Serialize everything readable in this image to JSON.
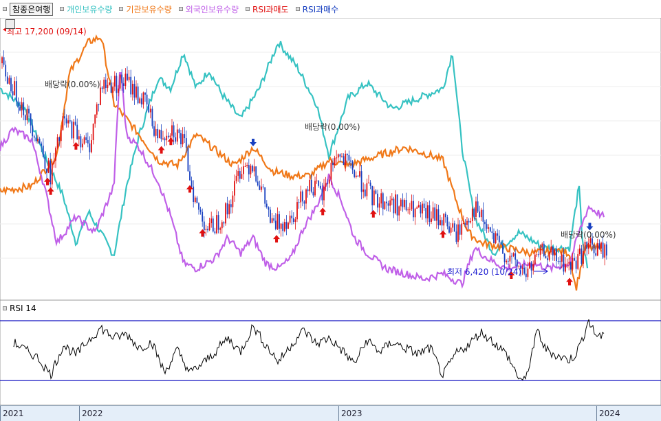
{
  "legend": {
    "button_label": "참종은여행",
    "items": [
      {
        "label": "개인보유수량",
        "color": "#36c2c2"
      },
      {
        "label": "기관보유수량",
        "color": "#f07818"
      },
      {
        "label": "외국인보유수량",
        "color": "#c060e8"
      },
      {
        "label": "RSI과매도",
        "color": "#e01010"
      },
      {
        "label": "RSI과매수",
        "color": "#1840c0"
      }
    ]
  },
  "annotations": {
    "high": "최고 17,200 (09/14)",
    "low": "최저 6,420 (10/24)",
    "dividend": "배당락(0.00%)"
  },
  "rsi_panel": {
    "title": "RSI 14"
  },
  "x_ticks": [
    "2021",
    "2022",
    "2023",
    "2024"
  ],
  "colors": {
    "up": "#e01010",
    "down": "#1840c0",
    "rsi_line": "#000000",
    "rsi_band": "#1010c0",
    "rsi_fill": "#0000ee"
  },
  "chart_data": [
    {
      "type": "candlestick",
      "title": "",
      "x_range": [
        "2021",
        "2024"
      ],
      "price_high": 17200,
      "price_high_date": "09/14",
      "price_low": 6420,
      "price_low_date": "10/24",
      "price_keypoints": [
        [
          0,
          15800
        ],
        [
          0.03,
          14200
        ],
        [
          0.06,
          12500
        ],
        [
          0.08,
          10800
        ],
        [
          0.1,
          13200
        ],
        [
          0.12,
          12800
        ],
        [
          0.14,
          12000
        ],
        [
          0.16,
          14800
        ],
        [
          0.2,
          15000
        ],
        [
          0.23,
          14000
        ],
        [
          0.25,
          12500
        ],
        [
          0.27,
          13000
        ],
        [
          0.29,
          12300
        ],
        [
          0.31,
          9500
        ],
        [
          0.33,
          8400
        ],
        [
          0.36,
          9300
        ],
        [
          0.38,
          11200
        ],
        [
          0.4,
          11400
        ],
        [
          0.43,
          8600
        ],
        [
          0.46,
          9000
        ],
        [
          0.49,
          10500
        ],
        [
          0.51,
          9900
        ],
        [
          0.53,
          11800
        ],
        [
          0.56,
          11000
        ],
        [
          0.59,
          9800
        ],
        [
          0.62,
          9600
        ],
        [
          0.66,
          9200
        ],
        [
          0.7,
          8900
        ],
        [
          0.72,
          8200
        ],
        [
          0.75,
          9400
        ],
        [
          0.78,
          8000
        ],
        [
          0.8,
          7300
        ],
        [
          0.83,
          6500
        ],
        [
          0.86,
          7500
        ],
        [
          0.88,
          7100
        ],
        [
          0.9,
          6800
        ],
        [
          0.93,
          7700
        ],
        [
          0.96,
          7400
        ]
      ],
      "series": [
        {
          "name": "개인보유수량",
          "keypoints": [
            [
              0,
              0.78
            ],
            [
              0.04,
              0.7
            ],
            [
              0.07,
              0.52
            ],
            [
              0.1,
              0.36
            ],
            [
              0.12,
              0.18
            ],
            [
              0.14,
              0.3
            ],
            [
              0.18,
              0.13
            ],
            [
              0.2,
              0.4
            ],
            [
              0.22,
              0.6
            ],
            [
              0.25,
              0.82
            ],
            [
              0.27,
              0.78
            ],
            [
              0.29,
              0.92
            ],
            [
              0.31,
              0.78
            ],
            [
              0.33,
              0.85
            ],
            [
              0.35,
              0.76
            ],
            [
              0.38,
              0.66
            ],
            [
              0.41,
              0.78
            ],
            [
              0.44,
              0.96
            ],
            [
              0.47,
              0.86
            ],
            [
              0.5,
              0.72
            ],
            [
              0.52,
              0.52
            ],
            [
              0.55,
              0.74
            ],
            [
              0.58,
              0.8
            ],
            [
              0.62,
              0.7
            ],
            [
              0.66,
              0.74
            ],
            [
              0.7,
              0.78
            ],
            [
              0.715,
              0.92
            ],
            [
              0.73,
              0.55
            ],
            [
              0.75,
              0.28
            ],
            [
              0.78,
              0.14
            ],
            [
              0.82,
              0.22
            ],
            [
              0.86,
              0.16
            ],
            [
              0.9,
              0.16
            ],
            [
              0.915,
              0.4
            ],
            [
              0.92,
              0.2
            ],
            [
              0.93,
              0.05
            ]
          ]
        },
        {
          "name": "기관보유수량",
          "keypoints": [
            [
              0,
              0.38
            ],
            [
              0.05,
              0.4
            ],
            [
              0.09,
              0.52
            ],
            [
              0.11,
              0.84
            ],
            [
              0.14,
              0.96
            ],
            [
              0.16,
              0.98
            ],
            [
              0.18,
              0.72
            ],
            [
              0.2,
              0.66
            ],
            [
              0.22,
              0.6
            ],
            [
              0.25,
              0.5
            ],
            [
              0.28,
              0.48
            ],
            [
              0.31,
              0.6
            ],
            [
              0.34,
              0.54
            ],
            [
              0.37,
              0.48
            ],
            [
              0.4,
              0.55
            ],
            [
              0.43,
              0.46
            ],
            [
              0.46,
              0.44
            ],
            [
              0.49,
              0.44
            ],
            [
              0.52,
              0.5
            ],
            [
              0.55,
              0.48
            ],
            [
              0.6,
              0.52
            ],
            [
              0.64,
              0.55
            ],
            [
              0.68,
              0.52
            ],
            [
              0.7,
              0.5
            ],
            [
              0.72,
              0.35
            ],
            [
              0.74,
              0.22
            ],
            [
              0.76,
              0.18
            ],
            [
              0.8,
              0.16
            ],
            [
              0.84,
              0.14
            ],
            [
              0.88,
              0.15
            ],
            [
              0.9,
              0.14
            ],
            [
              0.91,
              0.0
            ],
            [
              0.925,
              0.16
            ],
            [
              0.95,
              0.16
            ]
          ]
        },
        {
          "name": "외국인보유수량",
          "keypoints": [
            [
              0,
              0.55
            ],
            [
              0.02,
              0.62
            ],
            [
              0.05,
              0.58
            ],
            [
              0.07,
              0.4
            ],
            [
              0.09,
              0.18
            ],
            [
              0.12,
              0.28
            ],
            [
              0.15,
              0.22
            ],
            [
              0.18,
              0.4
            ],
            [
              0.19,
              0.88
            ],
            [
              0.2,
              0.6
            ],
            [
              0.22,
              0.55
            ],
            [
              0.25,
              0.42
            ],
            [
              0.27,
              0.28
            ],
            [
              0.29,
              0.1
            ],
            [
              0.31,
              0.08
            ],
            [
              0.34,
              0.12
            ],
            [
              0.36,
              0.2
            ],
            [
              0.38,
              0.14
            ],
            [
              0.4,
              0.2
            ],
            [
              0.42,
              0.1
            ],
            [
              0.44,
              0.08
            ],
            [
              0.46,
              0.12
            ],
            [
              0.48,
              0.24
            ],
            [
              0.5,
              0.32
            ],
            [
              0.52,
              0.44
            ],
            [
              0.54,
              0.34
            ],
            [
              0.56,
              0.2
            ],
            [
              0.58,
              0.14
            ],
            [
              0.61,
              0.08
            ],
            [
              0.64,
              0.06
            ],
            [
              0.67,
              0.04
            ],
            [
              0.7,
              0.06
            ],
            [
              0.73,
              0.02
            ],
            [
              0.75,
              0.16
            ],
            [
              0.77,
              0.12
            ],
            [
              0.8,
              0.08
            ],
            [
              0.84,
              0.1
            ],
            [
              0.87,
              0.08
            ],
            [
              0.9,
              0.1
            ],
            [
              0.915,
              0.22
            ],
            [
              0.93,
              0.32
            ],
            [
              0.955,
              0.28
            ]
          ]
        }
      ],
      "signals": {
        "oversold": [
          0.075,
          0.08,
          0.12,
          0.255,
          0.27,
          0.3,
          0.32,
          0.437,
          0.51,
          0.59,
          0.7,
          0.808,
          0.9
        ],
        "overbought": [
          0.4,
          0.932
        ]
      }
    },
    {
      "type": "line",
      "title": "RSI 14",
      "ylim": [
        0,
        100
      ],
      "overbought_level": 70,
      "oversold_level": 30,
      "keypoints": [
        [
          0,
          45
        ],
        [
          0.02,
          58
        ],
        [
          0.04,
          50
        ],
        [
          0.06,
          42
        ],
        [
          0.08,
          25
        ],
        [
          0.1,
          55
        ],
        [
          0.12,
          45
        ],
        [
          0.14,
          60
        ],
        [
          0.16,
          72
        ],
        [
          0.18,
          62
        ],
        [
          0.2,
          66
        ],
        [
          0.22,
          52
        ],
        [
          0.24,
          58
        ],
        [
          0.26,
          27
        ],
        [
          0.28,
          50
        ],
        [
          0.3,
          27
        ],
        [
          0.32,
          36
        ],
        [
          0.34,
          48
        ],
        [
          0.36,
          62
        ],
        [
          0.38,
          48
        ],
        [
          0.4,
          74
        ],
        [
          0.42,
          55
        ],
        [
          0.44,
          38
        ],
        [
          0.46,
          55
        ],
        [
          0.48,
          70
        ],
        [
          0.5,
          56
        ],
        [
          0.52,
          62
        ],
        [
          0.54,
          50
        ],
        [
          0.56,
          36
        ],
        [
          0.58,
          60
        ],
        [
          0.6,
          48
        ],
        [
          0.62,
          58
        ],
        [
          0.64,
          52
        ],
        [
          0.66,
          46
        ],
        [
          0.68,
          52
        ],
        [
          0.7,
          24
        ],
        [
          0.72,
          46
        ],
        [
          0.74,
          55
        ],
        [
          0.76,
          68
        ],
        [
          0.78,
          58
        ],
        [
          0.8,
          46
        ],
        [
          0.82,
          22
        ],
        [
          0.83,
          18
        ],
        [
          0.84,
          46
        ],
        [
          0.85,
          70
        ],
        [
          0.86,
          52
        ],
        [
          0.88,
          44
        ],
        [
          0.9,
          40
        ],
        [
          0.91,
          46
        ],
        [
          0.92,
          60
        ],
        [
          0.93,
          80
        ],
        [
          0.94,
          66
        ],
        [
          0.955,
          62
        ]
      ]
    }
  ]
}
